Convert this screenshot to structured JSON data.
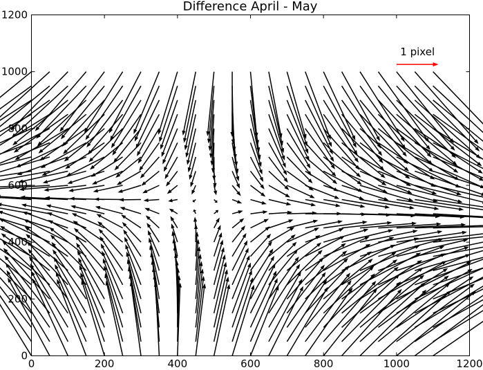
{
  "chart_data": {
    "type": "quiver",
    "title": "Difference April - May",
    "xlabel": "",
    "ylabel": "",
    "xlim": [
      0,
      1200
    ],
    "ylim": [
      0,
      1200
    ],
    "grid": false,
    "x_ticks": [
      0,
      200,
      400,
      600,
      800,
      1000,
      1200
    ],
    "y_ticks": [
      0,
      200,
      400,
      600,
      800,
      1000,
      1200
    ],
    "x_tick_labels": [
      "0",
      "200",
      "400",
      "600",
      "800",
      "1000",
      "1200"
    ],
    "y_tick_labels": [
      "0",
      "200",
      "400",
      "600",
      "800",
      "1000",
      "1200"
    ],
    "grid_x": [
      0,
      50,
      100,
      150,
      200,
      250,
      300,
      350,
      400,
      450,
      500,
      550,
      600,
      650,
      700,
      750,
      800,
      850,
      900,
      950,
      1000,
      1050,
      1100
    ],
    "grid_y": [
      0,
      50,
      100,
      150,
      200,
      250,
      300,
      350,
      400,
      450,
      500,
      550,
      600,
      650,
      700,
      750,
      800,
      850,
      900,
      950,
      1000
    ],
    "field_center": [
      470,
      530
    ],
    "arrow_color": "#000000",
    "quiver_key": {
      "label": "1 pixel",
      "color": "#ff0000",
      "position": "top-right",
      "x": 1000,
      "y": 1050,
      "length": 115
    }
  }
}
